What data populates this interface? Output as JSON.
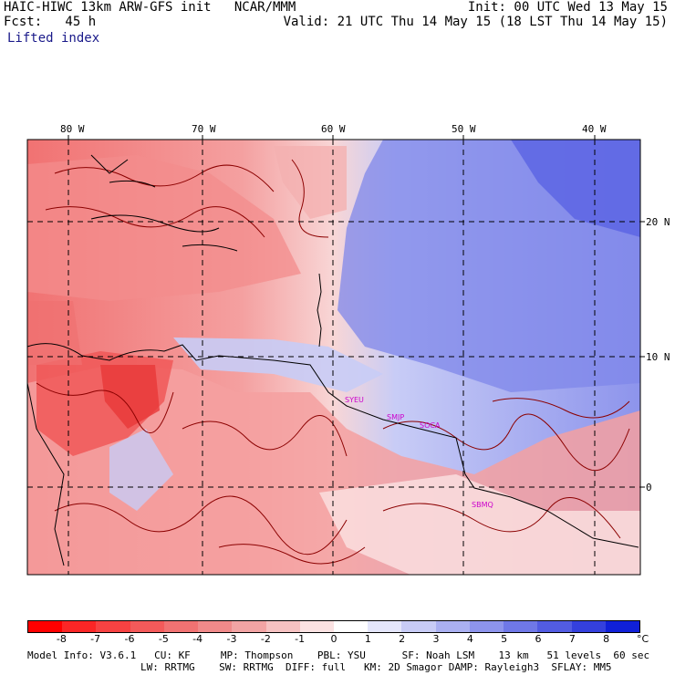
{
  "header": {
    "title": "HAIC-HIWC 13km ARW-GFS init   NCAR/MMM",
    "fcst": "Fcst:   45 h",
    "field": "Lifted index",
    "init": "Init: 00 UTC Wed 13 May 15",
    "valid": "Valid: 21 UTC Thu 14 May 15 (18 LST Thu 14 May 15)"
  },
  "map": {
    "lon_labels": [
      "80 W",
      "70 W",
      "60 W",
      "50 W",
      "40 W"
    ],
    "lat_labels": [
      "20 N",
      "10 N",
      "0"
    ],
    "stations": [
      "SYEU",
      "SMJP",
      "SOCA",
      "SBMQ"
    ],
    "colors": {
      "coast": "#000000",
      "contour": "#8b0000",
      "station": "#cc00cc",
      "grid": "#000000"
    }
  },
  "colorbar": {
    "ticks": [
      "-8",
      "-7",
      "-6",
      "-5",
      "-4",
      "-3",
      "-2",
      "-1",
      "0",
      "1",
      "2",
      "3",
      "4",
      "5",
      "6",
      "7",
      "8"
    ],
    "unit": "°C",
    "colors": [
      "#ff0000",
      "#fb2626",
      "#f74242",
      "#f45a5a",
      "#f17272",
      "#f08a8a",
      "#f2a4a4",
      "#f6c2c2",
      "#fbe2e2",
      "#ffffff",
      "#e4e6fb",
      "#c8ccf6",
      "#aab0f1",
      "#8d94ec",
      "#6f78e7",
      "#525ce2",
      "#3440dd",
      "#1020d8"
    ]
  },
  "model_info": {
    "line1": "Model Info: V3.6.1   CU: KF     MP: Thompson    PBL: YSU      SF: Noah LSM    13 km   51 levels  60 sec",
    "line2": "LW: RRTMG    SW: RRTMG  DIFF: full   KM: 2D Smagor DAMP: Rayleigh3  SFLAY: MM5"
  }
}
